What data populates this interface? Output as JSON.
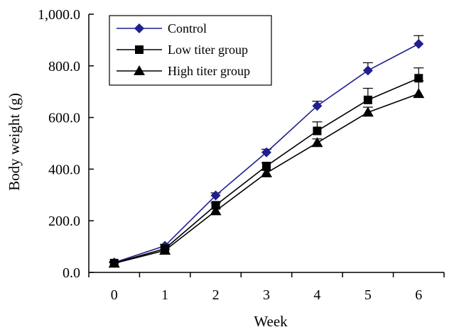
{
  "chart_data": {
    "type": "line",
    "title": "",
    "xlabel": "Week",
    "ylabel": "Body weight (g)",
    "x": [
      0,
      1,
      2,
      3,
      4,
      5,
      6
    ],
    "xlim": [
      -0.5,
      6.5
    ],
    "ylim": [
      0,
      1000
    ],
    "y_ticks": [
      "0.0",
      "200.0",
      "400.0",
      "600.0",
      "800.0",
      "1,000.0"
    ],
    "x_ticks": [
      "0",
      "1",
      "2",
      "3",
      "4",
      "5",
      "6"
    ],
    "grid": false,
    "legend_position": "top-left",
    "series": [
      {
        "name": "Control",
        "marker": "diamond",
        "color": "#1f1f8f",
        "values": [
          38,
          103,
          298,
          465,
          645,
          782,
          885
        ],
        "error": [
          4,
          6,
          10,
          12,
          18,
          30,
          32
        ]
      },
      {
        "name": "Low titer group",
        "marker": "square",
        "color": "#000000",
        "values": [
          36,
          92,
          260,
          412,
          548,
          668,
          752
        ],
        "error": [
          4,
          6,
          10,
          12,
          35,
          45,
          40
        ]
      },
      {
        "name": "High titer group",
        "marker": "triangle",
        "color": "#000000",
        "values": [
          35,
          85,
          238,
          385,
          502,
          620,
          692
        ],
        "error": [
          3,
          5,
          8,
          10,
          15,
          20,
          50
        ]
      }
    ]
  }
}
